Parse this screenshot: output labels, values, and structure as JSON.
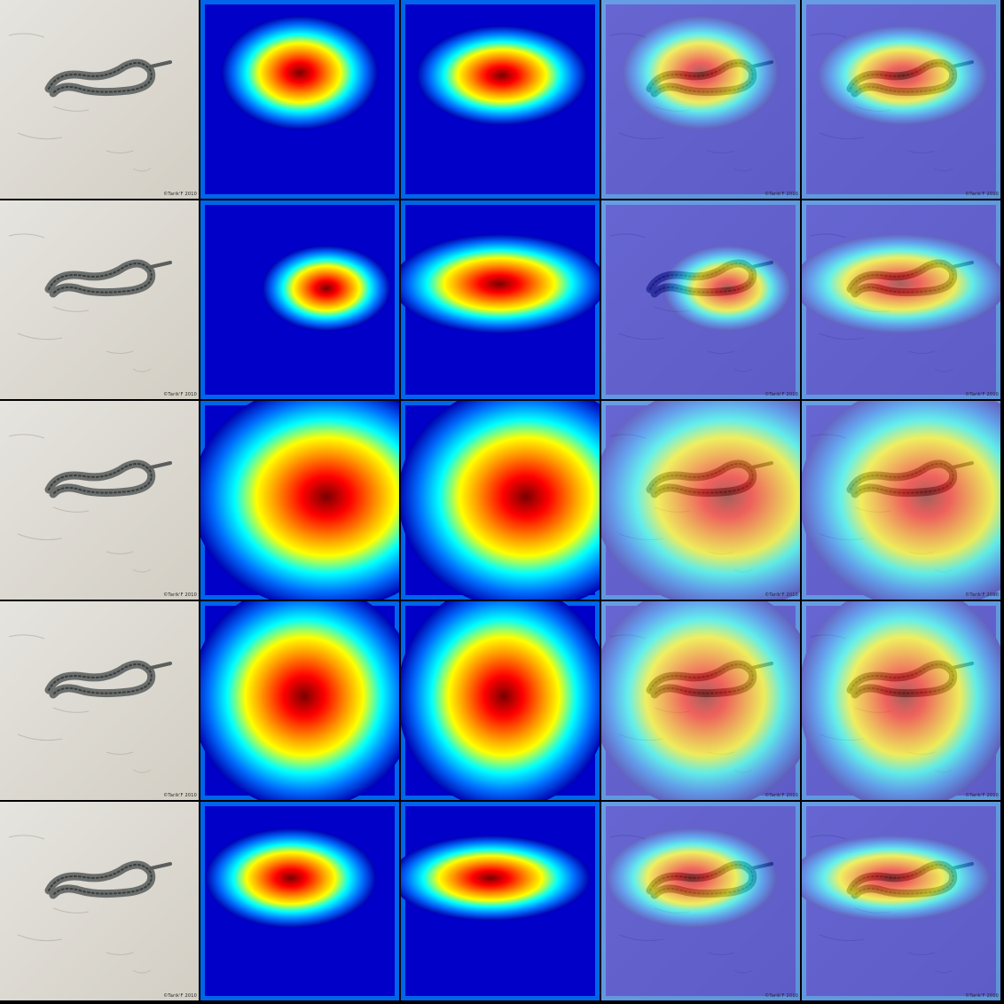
{
  "figure": {
    "rows": 5,
    "columns": 5,
    "column_kinds": [
      "photo",
      "heatmap",
      "heatmap",
      "overlay",
      "overlay"
    ],
    "photo_credit": "©Tarik'F 2010",
    "colormap": "jet",
    "colors": {
      "sand": "#d9d6cf",
      "snake_body": "#6a6e6c",
      "low": "#00008f",
      "mid": "#00ffff",
      "high": "#ff0000"
    }
  }
}
